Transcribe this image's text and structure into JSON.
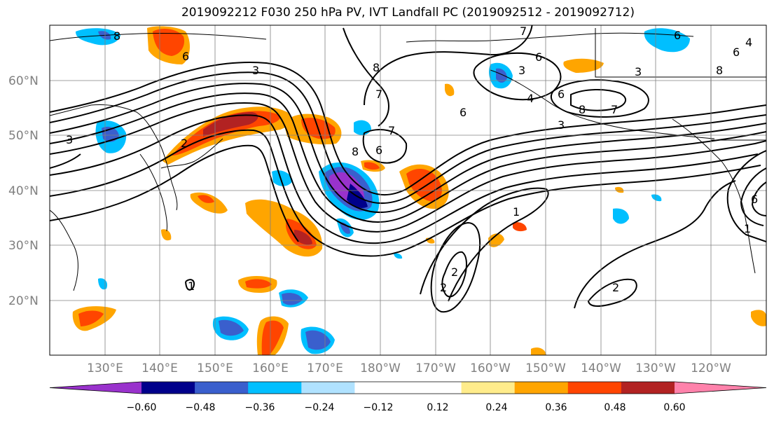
{
  "title": "2019092212 F030 250 hPa PV, IVT Landfall PC (2019092512 - 2019092712)",
  "lat_labels": [
    "60°N",
    "50°N",
    "40°N",
    "30°N",
    "20°N"
  ],
  "lon_labels": [
    "130°E",
    "140°E",
    "150°E",
    "160°E",
    "170°E",
    "180°W",
    "170°W",
    "160°W",
    "150°W",
    "140°W",
    "130°W",
    "120°W"
  ],
  "colorbar": {
    "colors": [
      "#9932cc",
      "#00008b",
      "#3a5fcd",
      "#00bfff",
      "#b0e2ff",
      "#ffffff",
      "#ffffff",
      "#ffec8b",
      "#ffa500",
      "#ff4500",
      "#b22222",
      "#ff82ab"
    ],
    "tick_labels": [
      "−0.60",
      "−0.48",
      "−0.36",
      "−0.24",
      "−0.12",
      "0.12",
      "0.24",
      "0.36",
      "0.48",
      "0.60"
    ]
  },
  "contour_labels": [
    "7",
    "6",
    "3",
    "6",
    "8",
    "7",
    "4",
    "6",
    "8",
    "3",
    "3",
    "7",
    "6",
    "2",
    "8",
    "6",
    "6",
    "3",
    "8",
    "7",
    "3",
    "4",
    "6",
    "8",
    "1",
    "2",
    "2",
    "1",
    "2",
    "1",
    "6"
  ]
}
